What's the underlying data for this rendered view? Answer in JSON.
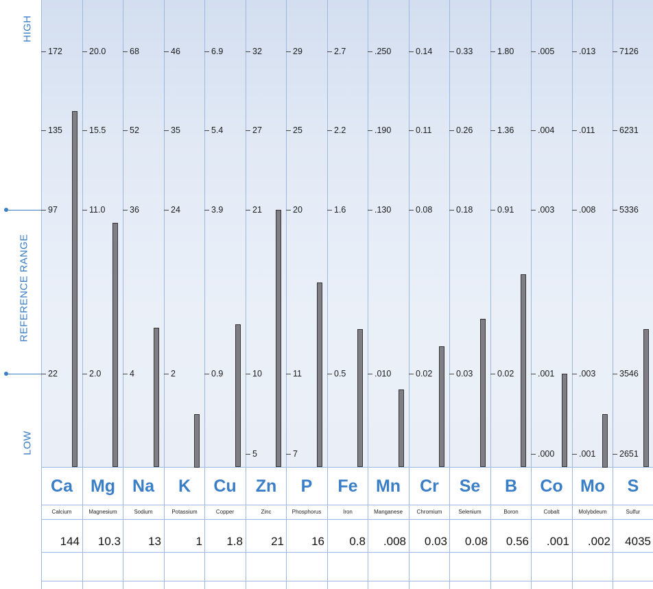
{
  "side_labels": {
    "high": "HIGH",
    "reference": "REFERENCE RANGE",
    "low": "LOW"
  },
  "chart_data": {
    "type": "bar",
    "title": "",
    "xlabel": "",
    "ylabel": "",
    "band_labels": [
      "HIGH",
      "REFERENCE RANGE",
      "LOW"
    ],
    "elements": [
      {
        "symbol": "Ca",
        "name": "Calcium",
        "result": "144",
        "ticks": [
          "172",
          "135",
          "97",
          "22"
        ],
        "value": 144
      },
      {
        "symbol": "Mg",
        "name": "Magnesium",
        "result": "10.3",
        "ticks": [
          "20.0",
          "15.5",
          "11.0",
          "2.0"
        ],
        "value": 10.3
      },
      {
        "symbol": "Na",
        "name": "Sodium",
        "result": "13",
        "ticks": [
          "68",
          "52",
          "36",
          "4"
        ],
        "value": 13
      },
      {
        "symbol": "K",
        "name": "Potassium",
        "result": "1",
        "ticks": [
          "46",
          "35",
          "24",
          "2"
        ],
        "value": 1
      },
      {
        "symbol": "Cu",
        "name": "Copper",
        "result": "1.8",
        "ticks": [
          "6.9",
          "5.4",
          "3.9",
          "0.9"
        ],
        "value": 1.8
      },
      {
        "symbol": "Zn",
        "name": "Zinc",
        "result": "21",
        "ticks": [
          "32",
          "27",
          "21",
          "10",
          "5"
        ],
        "value": 21
      },
      {
        "symbol": "P",
        "name": "Phosphorus",
        "result": "16",
        "ticks": [
          "29",
          "25",
          "20",
          "11",
          "7"
        ],
        "value": 16
      },
      {
        "symbol": "Fe",
        "name": "Iron",
        "result": "0.8",
        "ticks": [
          "2.7",
          "2.2",
          "1.6",
          "0.5"
        ],
        "value": 0.8
      },
      {
        "symbol": "Mn",
        "name": "Manganese",
        "result": ".008",
        "ticks": [
          ".250",
          ".190",
          ".130",
          ".010"
        ],
        "value": 0.008
      },
      {
        "symbol": "Cr",
        "name": "Chromium",
        "result": "0.03",
        "ticks": [
          "0.14",
          "0.11",
          "0.08",
          "0.02"
        ],
        "value": 0.03
      },
      {
        "symbol": "Se",
        "name": "Selenium",
        "result": "0.08",
        "ticks": [
          "0.33",
          "0.26",
          "0.18",
          "0.03"
        ],
        "value": 0.08
      },
      {
        "symbol": "B",
        "name": "Boron",
        "result": "0.56",
        "ticks": [
          "1.80",
          "1.36",
          "0.91",
          "0.02"
        ],
        "value": 0.56
      },
      {
        "symbol": "Co",
        "name": "Cobalt",
        "result": ".001",
        "ticks": [
          ".005",
          ".004",
          ".003",
          ".001",
          ".000"
        ],
        "value": 0.001
      },
      {
        "symbol": "Mo",
        "name": "Molybdeum",
        "result": ".002",
        "ticks": [
          ".013",
          ".011",
          ".008",
          ".003",
          ".001"
        ],
        "value": 0.002
      },
      {
        "symbol": "S",
        "name": "Sulfur",
        "result": "4035",
        "ticks": [
          "7126",
          "6231",
          "5336",
          "3546",
          "2651"
        ],
        "value": 4035
      }
    ]
  }
}
